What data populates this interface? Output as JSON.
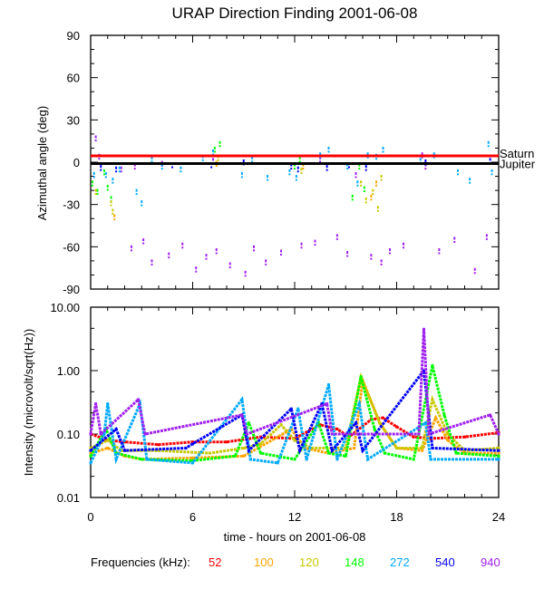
{
  "title": "URAP Direction Finding  2001-06-08",
  "xlabel": "time - hours on 2001-06-08",
  "legend": {
    "label": "Frequencies (kHz):",
    "items": [
      {
        "name": "52",
        "color": "#ff0000"
      },
      {
        "name": "100",
        "color": "#ffa500"
      },
      {
        "name": "120",
        "color": "#c8c800"
      },
      {
        "name": "148",
        "color": "#00ff00"
      },
      {
        "name": "272",
        "color": "#00aaff"
      },
      {
        "name": "540",
        "color": "#0000ff"
      },
      {
        "name": "940",
        "color": "#a020f0"
      }
    ]
  },
  "chart_data": [
    {
      "type": "scatter",
      "ylabel": "Azimuthal angle (deg)",
      "xlim": [
        0,
        24
      ],
      "ylim": [
        -90,
        90
      ],
      "x_ticks": [
        "0",
        "6",
        "12",
        "18",
        "24"
      ],
      "y_ticks": [
        "90",
        "60",
        "30",
        "0",
        "-30",
        "-60",
        "-90"
      ],
      "reference_lines": [
        {
          "label": "Saturn",
          "deg": 4.5,
          "color": "#ff0000"
        },
        {
          "label": "Jupiter",
          "deg": -1,
          "color": "#000000"
        }
      ],
      "series": [
        {
          "name": "940",
          "points": [
            [
              0.3,
              18
            ],
            [
              0.5,
              5
            ],
            [
              1.8,
              -4
            ],
            [
              2.4,
              -60
            ],
            [
              3.1,
              -55
            ],
            [
              3.6,
              -70
            ],
            [
              4.6,
              -65
            ],
            [
              5.4,
              -58
            ],
            [
              6.2,
              -75
            ],
            [
              6.8,
              -66
            ],
            [
              7.4,
              -62
            ],
            [
              8.2,
              -72
            ],
            [
              9.1,
              -78
            ],
            [
              9.6,
              -60
            ],
            [
              10.3,
              -70
            ],
            [
              11.2,
              -63
            ],
            [
              12.4,
              -58
            ],
            [
              13.2,
              -56
            ],
            [
              14.5,
              -52
            ],
            [
              15.1,
              -64
            ],
            [
              15.6,
              -8
            ],
            [
              16.5,
              -66
            ],
            [
              17.1,
              -70
            ],
            [
              17.6,
              -62
            ],
            [
              18.4,
              -58
            ],
            [
              19.5,
              6
            ],
            [
              20.5,
              -62
            ],
            [
              21.4,
              -54
            ],
            [
              22.6,
              -76
            ],
            [
              23.3,
              -52
            ],
            [
              2.6,
              -2
            ],
            [
              7.2,
              2
            ],
            [
              13.5,
              3
            ],
            [
              19.7,
              -2
            ],
            [
              4.2,
              0
            ]
          ]
        },
        {
          "name": "540",
          "points": [
            [
              0.6,
              -3
            ],
            [
              1.5,
              -4
            ],
            [
              7.1,
              -1
            ],
            [
              11.8,
              -2
            ],
            [
              12.2,
              -4
            ],
            [
              13.9,
              -3
            ],
            [
              15.2,
              -1
            ],
            [
              16.2,
              -3
            ],
            [
              19.7,
              1
            ],
            [
              23.5,
              2
            ],
            [
              4.8,
              -1
            ],
            [
              9.0,
              1
            ]
          ]
        },
        {
          "name": "272",
          "points": [
            [
              0.2,
              -8
            ],
            [
              0.9,
              -8
            ],
            [
              1.3,
              -12
            ],
            [
              2.7,
              -20
            ],
            [
              3.6,
              3
            ],
            [
              4.2,
              -2
            ],
            [
              6.6,
              4
            ],
            [
              7.2,
              8
            ],
            [
              8.9,
              -8
            ],
            [
              9.5,
              3
            ],
            [
              11.7,
              -6
            ],
            [
              12.1,
              -10
            ],
            [
              13.5,
              6
            ],
            [
              14.0,
              10
            ],
            [
              15.1,
              -2
            ],
            [
              15.7,
              -14
            ],
            [
              16.3,
              6
            ],
            [
              16.8,
              5
            ],
            [
              17.2,
              10
            ],
            [
              19.4,
              2
            ],
            [
              20.2,
              6
            ],
            [
              23.4,
              14
            ],
            [
              23.6,
              -6
            ],
            [
              1.7,
              -4
            ],
            [
              3.0,
              -28
            ],
            [
              10.4,
              -10
            ],
            [
              5.3,
              -4
            ],
            [
              21.6,
              -6
            ],
            [
              22.3,
              -12
            ]
          ]
        },
        {
          "name": "148",
          "points": [
            [
              0.1,
              -14
            ],
            [
              0.4,
              -20
            ],
            [
              1.0,
              -17
            ],
            [
              1.2,
              -25
            ],
            [
              7.3,
              10
            ],
            [
              7.6,
              14
            ],
            [
              12.0,
              -2
            ],
            [
              12.3,
              3
            ],
            [
              15.4,
              -24
            ],
            [
              15.8,
              -2
            ],
            [
              16.1,
              -18
            ],
            [
              0.8,
              -6
            ]
          ]
        },
        {
          "name": "120",
          "points": [
            [
              1.3,
              -34
            ],
            [
              1.2,
              -28
            ],
            [
              0.3,
              -20
            ],
            [
              7.5,
              4
            ],
            [
              12.4,
              -5
            ],
            [
              16.2,
              -26
            ],
            [
              16.6,
              -20
            ],
            [
              16.9,
              -32
            ],
            [
              15.9,
              -14
            ],
            [
              17.1,
              -10
            ]
          ]
        },
        {
          "name": "100",
          "points": [
            [
              1.4,
              -38
            ],
            [
              16.5,
              -24
            ],
            [
              16.8,
              -14
            ],
            [
              7.4,
              0
            ],
            [
              12.5,
              -2
            ]
          ]
        }
      ]
    },
    {
      "type": "line",
      "ylabel": "Intensity (microvolt/sqrt(Hz))",
      "yscale": "log",
      "xlim": [
        0,
        24
      ],
      "ylim": [
        0.01,
        10
      ],
      "x_ticks": [
        "0",
        "6",
        "12",
        "18",
        "24"
      ],
      "y_ticks": [
        "10.00",
        "1.00",
        "0.10",
        "0.01"
      ],
      "series": [
        {
          "name": "52",
          "points": [
            [
              0,
              0.1
            ],
            [
              1,
              0.08
            ],
            [
              2,
              0.075
            ],
            [
              4,
              0.068
            ],
            [
              6,
              0.075
            ],
            [
              8,
              0.075
            ],
            [
              10,
              0.09
            ],
            [
              12,
              0.085
            ],
            [
              13.5,
              0.14
            ],
            [
              14.5,
              0.12
            ],
            [
              15.2,
              0.09
            ],
            [
              16.5,
              0.17
            ],
            [
              17.2,
              0.18
            ],
            [
              18,
              0.13
            ],
            [
              19,
              0.09
            ],
            [
              20,
              0.085
            ],
            [
              22,
              0.09
            ],
            [
              24,
              0.105
            ]
          ]
        },
        {
          "name": "100",
          "points": [
            [
              0,
              0.05
            ],
            [
              1,
              0.06
            ],
            [
              2,
              0.045
            ],
            [
              3,
              0.04
            ],
            [
              6,
              0.042
            ],
            [
              9,
              0.045
            ],
            [
              11.3,
              0.1
            ],
            [
              11.8,
              0.12
            ],
            [
              12.6,
              0.06
            ],
            [
              14,
              0.05
            ],
            [
              15.5,
              0.06
            ],
            [
              16,
              0.7
            ],
            [
              17,
              0.15
            ],
            [
              18,
              0.06
            ],
            [
              19.5,
              0.055
            ],
            [
              20.3,
              0.18
            ],
            [
              21,
              0.08
            ],
            [
              22,
              0.05
            ],
            [
              24,
              0.05
            ]
          ]
        },
        {
          "name": "120",
          "points": [
            [
              0,
              0.06
            ],
            [
              1,
              0.08
            ],
            [
              1.8,
              0.055
            ],
            [
              4,
              0.055
            ],
            [
              7,
              0.05
            ],
            [
              9,
              0.06
            ],
            [
              10,
              0.07
            ],
            [
              11.2,
              0.14
            ],
            [
              12,
              0.08
            ],
            [
              13,
              0.06
            ],
            [
              15,
              0.06
            ],
            [
              15.9,
              0.8
            ],
            [
              17,
              0.15
            ],
            [
              18,
              0.06
            ],
            [
              19.5,
              0.06
            ],
            [
              20.1,
              0.35
            ],
            [
              21,
              0.1
            ],
            [
              22,
              0.055
            ],
            [
              24,
              0.06
            ]
          ]
        },
        {
          "name": "148",
          "points": [
            [
              0,
              0.045
            ],
            [
              0.9,
              0.12
            ],
            [
              1.5,
              0.05
            ],
            [
              3,
              0.04
            ],
            [
              6,
              0.038
            ],
            [
              8.5,
              0.045
            ],
            [
              9.3,
              0.15
            ],
            [
              10,
              0.05
            ],
            [
              12,
              0.04
            ],
            [
              13.4,
              0.15
            ],
            [
              14,
              0.05
            ],
            [
              15,
              0.045
            ],
            [
              15.9,
              0.8
            ],
            [
              16.7,
              0.12
            ],
            [
              17.3,
              0.05
            ],
            [
              19,
              0.04
            ],
            [
              20.1,
              1.2
            ],
            [
              20.8,
              0.2
            ],
            [
              21.5,
              0.05
            ],
            [
              24,
              0.045
            ]
          ]
        },
        {
          "name": "272",
          "points": [
            [
              0,
              0.035
            ],
            [
              0.8,
              0.1
            ],
            [
              1.0,
              0.3
            ],
            [
              1.5,
              0.04
            ],
            [
              2.9,
              0.3
            ],
            [
              3.3,
              0.04
            ],
            [
              6,
              0.035
            ],
            [
              8.9,
              0.35
            ],
            [
              9.4,
              0.04
            ],
            [
              11,
              0.035
            ],
            [
              12.2,
              0.25
            ],
            [
              12.7,
              0.04
            ],
            [
              14,
              0.6
            ],
            [
              14.5,
              0.04
            ],
            [
              15.8,
              0.3
            ],
            [
              16.3,
              0.04
            ],
            [
              19.7,
              0.15
            ],
            [
              20,
              0.04
            ],
            [
              24,
              0.04
            ]
          ]
        },
        {
          "name": "540",
          "points": [
            [
              0,
              0.055
            ],
            [
              1.5,
              0.12
            ],
            [
              2,
              0.055
            ],
            [
              5.6,
              0.06
            ],
            [
              6,
              0.07
            ],
            [
              8.9,
              0.2
            ],
            [
              9.3,
              0.055
            ],
            [
              11.8,
              0.25
            ],
            [
              12.3,
              0.055
            ],
            [
              13.6,
              0.3
            ],
            [
              14.2,
              0.055
            ],
            [
              15.6,
              0.15
            ],
            [
              16,
              0.055
            ],
            [
              19.6,
              1.0
            ],
            [
              20.1,
              0.06
            ],
            [
              24,
              0.055
            ]
          ]
        },
        {
          "name": "940",
          "points": [
            [
              0,
              0.1
            ],
            [
              0.3,
              0.3
            ],
            [
              0.6,
              0.1
            ],
            [
              2.8,
              0.35
            ],
            [
              3.2,
              0.1
            ],
            [
              8.9,
              0.2
            ],
            [
              9.2,
              0.1
            ],
            [
              13.9,
              0.3
            ],
            [
              14.2,
              0.1
            ],
            [
              19.3,
              0.1
            ],
            [
              19.6,
              4.5
            ],
            [
              19.9,
              0.1
            ],
            [
              23.5,
              0.2
            ],
            [
              24,
              0.1
            ]
          ]
        }
      ]
    }
  ]
}
